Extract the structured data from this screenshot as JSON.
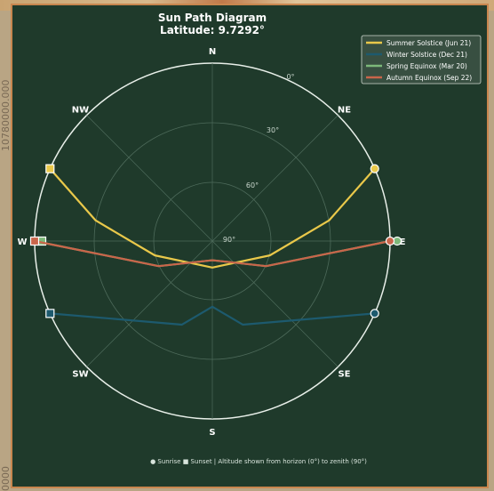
{
  "side_labels": {
    "top": "10780000.000",
    "bottom": "0000"
  },
  "chart_data": {
    "type": "polar-line",
    "title": "Sun Path Diagram",
    "subtitle": "Latitude: 9.7292°",
    "directions": [
      "N",
      "NE",
      "E",
      "SE",
      "S",
      "SW",
      "W",
      "NW"
    ],
    "ring_labels": [
      "0°",
      "30°",
      "60°",
      "90°"
    ],
    "ring_altitudes": [
      0,
      30,
      60
    ],
    "legend_position": "top-right",
    "series": [
      {
        "name": "Summer Solstice (Jun 21)",
        "color": "#e9c84a",
        "points": [
          [
            66,
            0
          ],
          [
            80,
            30
          ],
          [
            104,
            60
          ],
          [
            180,
            76.6
          ],
          [
            256,
            60
          ],
          [
            280,
            30
          ],
          [
            294,
            0
          ]
        ]
      },
      {
        "name": "Winter Solstice (Dec 21)",
        "color": "#1d5a6e",
        "points": [
          [
            114,
            0
          ],
          [
            160,
            45
          ],
          [
            180,
            56.8
          ],
          [
            200,
            45
          ],
          [
            246,
            0
          ]
        ]
      },
      {
        "name": "Spring Equinox (Mar 20)",
        "color": "#7db87a",
        "points": [
          [
            90,
            0
          ],
          [
            115,
            60
          ],
          [
            180,
            80.3
          ],
          [
            245,
            60
          ],
          [
            270,
            0
          ]
        ]
      },
      {
        "name": "Autumn Equinox (Sep 22)",
        "color": "#c9654a",
        "points": [
          [
            90,
            0
          ],
          [
            115,
            60
          ],
          [
            180,
            80.3
          ],
          [
            245,
            60
          ],
          [
            270,
            0
          ]
        ]
      }
    ],
    "footer_note": "● Sunrise  ■ Sunset | Altitude shown from horizon (0°) to zenith (90°)",
    "colors": {
      "background": "#1f3a2b",
      "frame": "#c8864e",
      "grid": "#4d6a5a",
      "text": "#ffffff"
    }
  }
}
